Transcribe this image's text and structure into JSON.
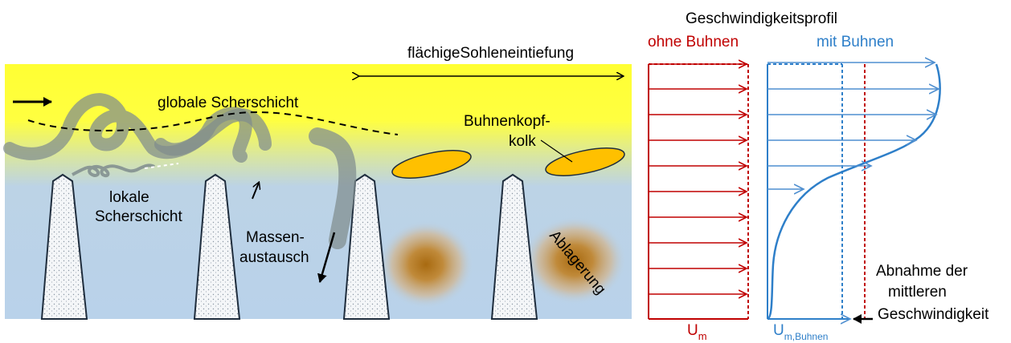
{
  "labels": {
    "surface_erosion": "flächigeSohleneintiefung",
    "global_shear_layer": "globale Scherschicht",
    "groyne_head_scour_line1": "Buhnenkopf-",
    "groyne_head_scour_line2": "kolk",
    "local_shear_layer_line1": "lokale",
    "local_shear_layer_line2": "Scherschicht",
    "mass_exchange_line1": "Massen-",
    "mass_exchange_line2": "austausch",
    "deposition": "Ablagerung"
  },
  "profile": {
    "title": "Geschwindigkeitsprofil",
    "without_groynes": "ohne Buhnen",
    "with_groynes": "mit Buhnen",
    "um_symbol": "U",
    "um_subscript": "m",
    "um_groynes_subscript": "m,Buhnen",
    "decrease_line1": "Abnahme der",
    "decrease_line2": "mittleren",
    "decrease_line3": "Geschwindigkeit"
  },
  "colors": {
    "yellow": "#ffff33",
    "water_blue": "#b9d2ea",
    "red": "#c00000",
    "blue": "#2e7fc9",
    "arrow_blue": "#4f8fd0",
    "scour_orange": "#ffc000",
    "vortex_gray": "#7f8c8d"
  }
}
